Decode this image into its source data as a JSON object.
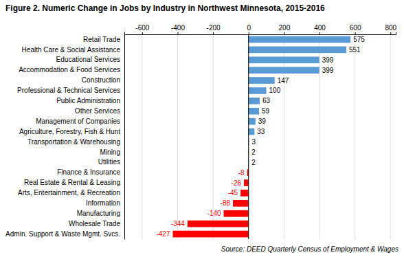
{
  "chart_data": {
    "type": "bar",
    "orientation": "horizontal",
    "title": "Figure 2. Numeric Change in Jobs by Industry in Northwest Minnesota, 2015-2016",
    "annotations": [
      "Source: DEED Quarterly Census of Employment & Wages"
    ],
    "categories": [
      "Admin. Support & Waste Mgmt. Svcs.",
      "Wholesale Trade",
      "Manufacturing",
      "Information",
      "Arts, Entertainment, & Recreation",
      "Real Estate & Rental & Leasing",
      "Finance & Insurance",
      "Utilities",
      "Mining",
      "Transportation & Warehousing",
      "Agriculture, Forestry, Fish & Hunt",
      "Management of Companies",
      "Other Services",
      "Public Administration",
      "Professional & Technical Services",
      "Construction",
      "Accommodation & Food Services",
      "Educational Services",
      "Health Care & Social Assistance",
      "Retail Trade"
    ],
    "values": [
      -427,
      -344,
      -140,
      -88,
      -45,
      -26,
      -8,
      2,
      2,
      3,
      33,
      39,
      59,
      63,
      100,
      147,
      399,
      399,
      551,
      575
    ],
    "colors": [
      "#FF0000",
      "#FF0000",
      "#FF0000",
      "#FF0000",
      "#FF0000",
      "#FF0000",
      "#FF0000",
      "#5B9BD5",
      "#5B9BD5",
      "#5B9BD5",
      "#5B9BD5",
      "#5B9BD5",
      "#5B9BD5",
      "#5B9BD5",
      "#5B9BD5",
      "#5B9BD5",
      "#5B9BD5",
      "#5B9BD5",
      "#5B9BD5",
      "#5B9BD5"
    ],
    "xlim": [
      -700,
      830
    ],
    "xticks": [
      -600,
      -400,
      -200,
      0,
      200,
      400,
      600,
      800
    ],
    "grid": true,
    "data_labels": true
  }
}
